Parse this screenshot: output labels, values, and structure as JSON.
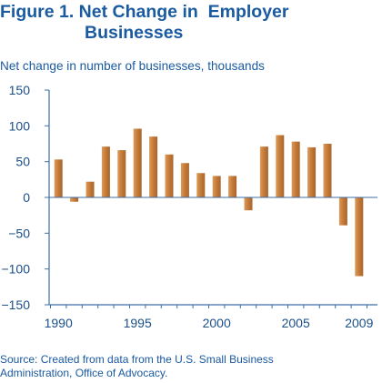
{
  "title": {
    "line1": "Figure 1. Net Change in  Employer",
    "line2": "Businesses"
  },
  "source": {
    "line1": "Source: Created from data from the U.S. Small Business",
    "line2": "Administration, Office of Advocacy."
  },
  "chart_data": {
    "type": "bar",
    "ylabel": "Net change in number of businesses, thousands",
    "xlabel": "",
    "ylim": [
      -150,
      150
    ],
    "yticks": [
      150,
      100,
      50,
      0,
      -50,
      -100,
      -150
    ],
    "yticks_labels": [
      "150",
      "100",
      "50",
      "0",
      "−50",
      "−100",
      "−150"
    ],
    "xticks": [
      1990,
      1995,
      2000,
      2005,
      2009
    ],
    "xticks_labels": [
      "1990",
      "1995",
      "2000",
      "2005",
      "2009"
    ],
    "categories": [
      1990,
      1991,
      1992,
      1993,
      1994,
      1995,
      1996,
      1997,
      1998,
      1999,
      2000,
      2001,
      2002,
      2003,
      2004,
      2005,
      2006,
      2007,
      2008,
      2009
    ],
    "values": [
      53,
      -6,
      22,
      71,
      66,
      96,
      85,
      60,
      48,
      34,
      30,
      30,
      -18,
      71,
      87,
      78,
      70,
      75,
      -39,
      -110
    ],
    "grid": false,
    "bar_color": "#cc8040",
    "axis_color": "#3f6ea7"
  }
}
